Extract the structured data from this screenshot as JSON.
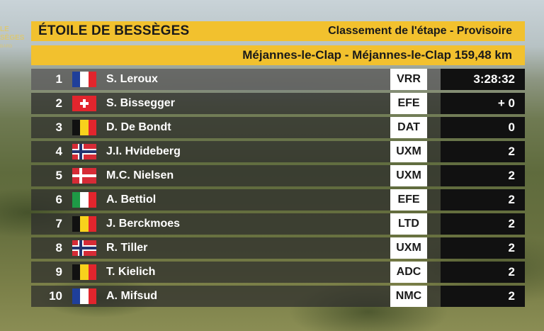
{
  "watermark": {
    "line1": "LE",
    "line2": "SÈGES",
    "line3": "BARD"
  },
  "header": {
    "race": "ÉTOILE DE BESSÈGES",
    "classification": "Classement de l'étape - Provisoire",
    "route": "Méjannes-le-Clap - Méjannes-le-Clap 159,48 km"
  },
  "rows": [
    {
      "rank": "1",
      "flag": "france-flag-icon",
      "name": "S. Leroux",
      "team": "VRR",
      "time": "3:28:32"
    },
    {
      "rank": "2",
      "flag": "switzerland-flag-icon",
      "name": "S. Bissegger",
      "team": "EFE",
      "time": "+ 0"
    },
    {
      "rank": "3",
      "flag": "belgium-flag-icon",
      "name": "D. De Bondt",
      "team": "DAT",
      "time": "0"
    },
    {
      "rank": "4",
      "flag": "norway-flag-icon",
      "name": "J.I. Hvideberg",
      "team": "UXM",
      "time": "2"
    },
    {
      "rank": "5",
      "flag": "denmark-flag-icon",
      "name": "M.C. Nielsen",
      "team": "UXM",
      "time": "2"
    },
    {
      "rank": "6",
      "flag": "italy-flag-icon",
      "name": "A. Bettiol",
      "team": "EFE",
      "time": "2"
    },
    {
      "rank": "7",
      "flag": "belgium-flag-icon",
      "name": "J. Berckmoes",
      "team": "LTD",
      "time": "2"
    },
    {
      "rank": "8",
      "flag": "norway-flag-icon",
      "name": "R. Tiller",
      "team": "UXM",
      "time": "2"
    },
    {
      "rank": "9",
      "flag": "belgium-flag-icon",
      "name": "T. Kielich",
      "team": "ADC",
      "time": "2"
    },
    {
      "rank": "10",
      "flag": "france-flag-icon",
      "name": "A. Mifsud",
      "team": "NMC",
      "time": "2"
    }
  ],
  "colors": {
    "accent": "#f2c12e",
    "row_bg": "#2d2d2d",
    "time_bg": "#111111"
  }
}
